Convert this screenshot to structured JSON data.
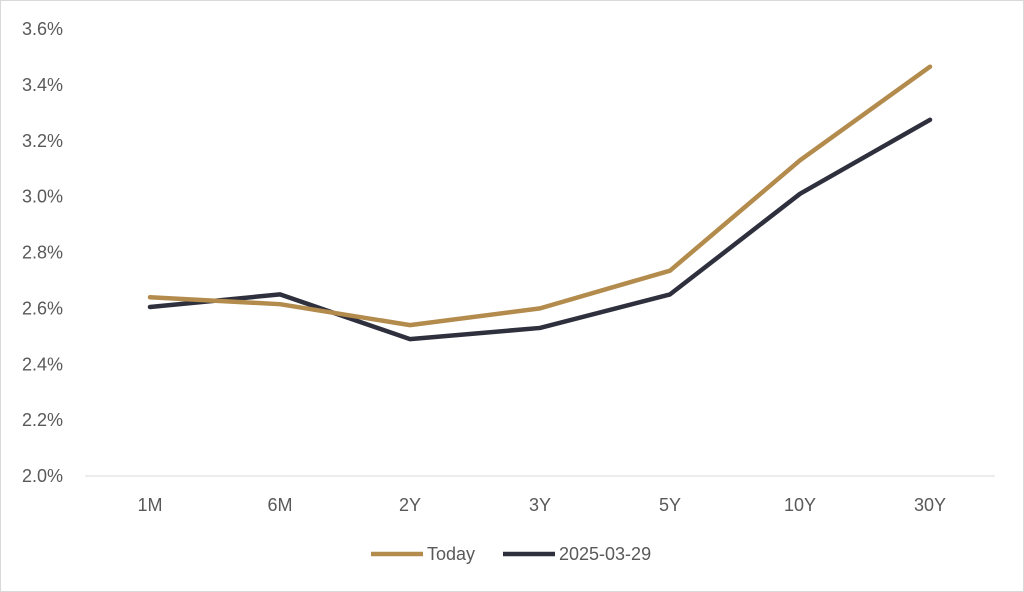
{
  "chart_data": {
    "type": "line",
    "categories": [
      "1M",
      "6M",
      "2Y",
      "3Y",
      "5Y",
      "10Y",
      "30Y"
    ],
    "series": [
      {
        "name": "Today",
        "color": "#b38b4d",
        "values": [
          2.64,
          2.615,
          2.54,
          2.6,
          2.735,
          3.13,
          3.465
        ]
      },
      {
        "name": "2025-03-29",
        "color": "#2f303d",
        "values": [
          2.605,
          2.65,
          2.49,
          2.53,
          2.65,
          3.01,
          3.275
        ]
      }
    ],
    "ylim": [
      2.0,
      3.6
    ],
    "yticks": [
      "2.0%",
      "2.2%",
      "2.4%",
      "2.6%",
      "2.8%",
      "3.0%",
      "3.2%",
      "3.4%",
      "3.6%"
    ],
    "ytick_values": [
      2.0,
      2.2,
      2.4,
      2.6,
      2.8,
      3.0,
      3.2,
      3.4,
      3.6
    ],
    "grid": false,
    "legend": "bottom"
  }
}
